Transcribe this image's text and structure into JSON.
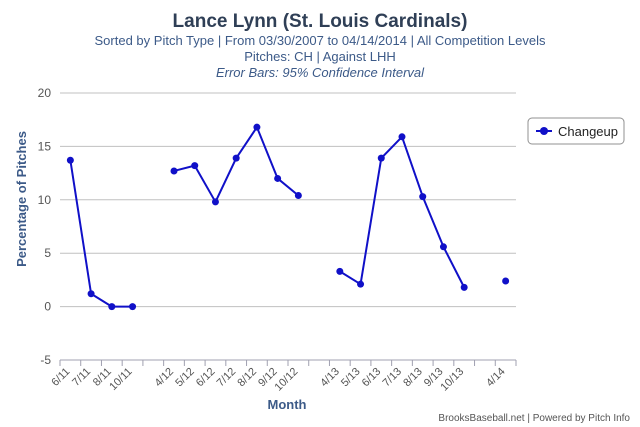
{
  "chart_data": {
    "type": "line",
    "title": "Lance Lynn (St. Louis Cardinals)",
    "subtitle_lines": [
      "Sorted by Pitch Type | From 03/30/2007 to 04/14/2014 | All Competition Levels",
      "Pitches: CH | Against LHH"
    ],
    "subtitle_italic": "Error Bars: 95% Confidence Interval",
    "xlabel": "Month",
    "ylabel": "Percentage of Pitches",
    "ylim": [
      -5,
      20
    ],
    "yticks": [
      -5,
      0,
      5,
      10,
      15,
      20
    ],
    "categories": [
      "6/11",
      "7/11",
      "8/11",
      "10/11",
      "",
      "4/12",
      "5/12",
      "6/12",
      "7/12",
      "8/12",
      "9/12",
      "10/12",
      "",
      "4/13",
      "5/13",
      "6/13",
      "7/13",
      "8/13",
      "9/13",
      "10/13",
      "",
      "4/14"
    ],
    "series": [
      {
        "name": "Changeup",
        "color": "#1010c8",
        "values": [
          13.7,
          1.2,
          0.0,
          0.0,
          null,
          12.7,
          13.2,
          9.8,
          13.9,
          16.8,
          12.0,
          10.4,
          null,
          3.3,
          2.1,
          13.9,
          15.9,
          10.3,
          5.6,
          1.8,
          null,
          2.4
        ]
      }
    ],
    "grid": true,
    "legend_position": "top-right",
    "credits": "BrooksBaseball.net | Powered by Pitch Info"
  }
}
